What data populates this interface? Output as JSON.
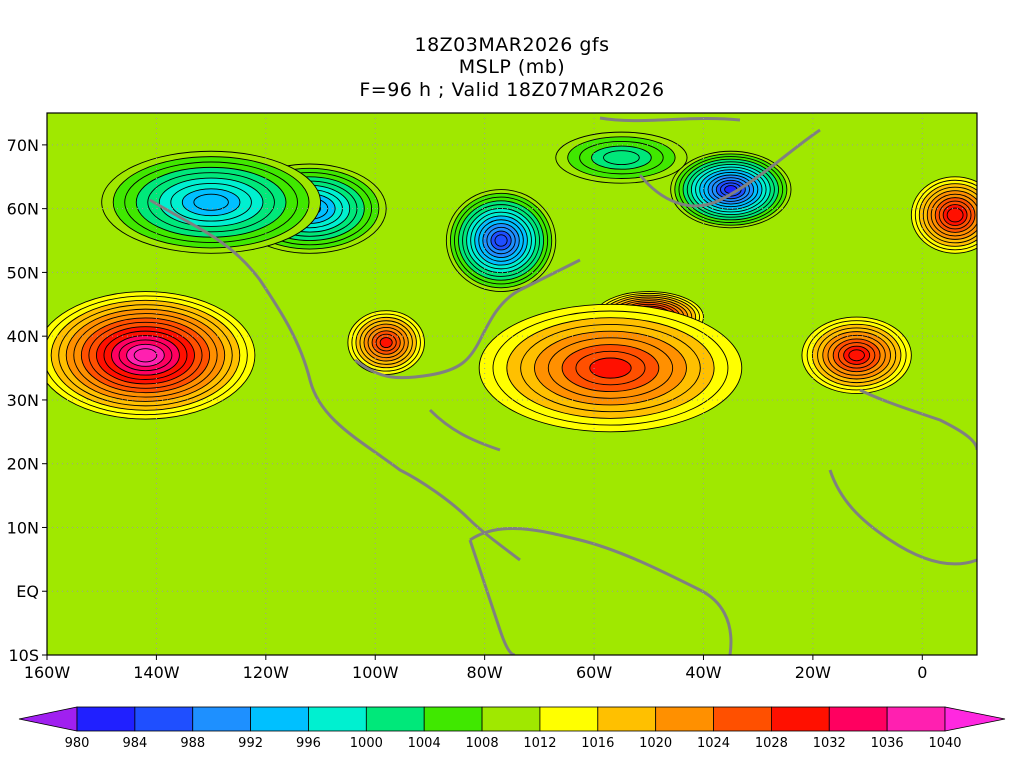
{
  "title": {
    "run": "18Z03MAR2026 gfs",
    "field": "MSLP (mb)",
    "valid": "F=96 h ; Valid 18Z07MAR2026"
  },
  "map": {
    "projection": "lat-lon",
    "lon_range": [
      -160,
      10
    ],
    "lat_range": [
      -10,
      75
    ],
    "lat_ticks": [
      {
        "value": 70,
        "label": "70N"
      },
      {
        "value": 60,
        "label": "60N"
      },
      {
        "value": 50,
        "label": "50N"
      },
      {
        "value": 40,
        "label": "40N"
      },
      {
        "value": 30,
        "label": "30N"
      },
      {
        "value": 20,
        "label": "20N"
      },
      {
        "value": 10,
        "label": "10N"
      },
      {
        "value": 0,
        "label": "EQ"
      },
      {
        "value": -10,
        "label": "10S"
      }
    ],
    "lon_ticks": [
      {
        "value": -160,
        "label": "160W"
      },
      {
        "value": -140,
        "label": "140W"
      },
      {
        "value": -120,
        "label": "120W"
      },
      {
        "value": -100,
        "label": "100W"
      },
      {
        "value": -80,
        "label": "80W"
      },
      {
        "value": -60,
        "label": "60W"
      },
      {
        "value": -40,
        "label": "40W"
      },
      {
        "value": -20,
        "label": "20W"
      },
      {
        "value": 0,
        "label": "0"
      }
    ],
    "grid": "dotted",
    "background_level": 1010,
    "pressure_centers": [
      {
        "type": "high",
        "lon": -142,
        "lat": 37,
        "value": 1038,
        "rx": 20,
        "ry": 10
      },
      {
        "type": "high",
        "lon": -50,
        "lat": 43,
        "value": 1037,
        "rx": 10,
        "ry": 4
      },
      {
        "type": "high",
        "lon": -57,
        "lat": 35,
        "value": 1028,
        "rx": 24,
        "ry": 10
      },
      {
        "type": "high",
        "lon": -12,
        "lat": 37,
        "value": 1030,
        "rx": 10,
        "ry": 6
      },
      {
        "type": "high",
        "lon": 6,
        "lat": 59,
        "value": 1031,
        "rx": 8,
        "ry": 6
      },
      {
        "type": "high",
        "lon": -98,
        "lat": 39,
        "value": 1028,
        "rx": 7,
        "ry": 5
      },
      {
        "type": "low",
        "lon": -35,
        "lat": 63,
        "value": 982,
        "rx": 11,
        "ry": 6
      },
      {
        "type": "low",
        "lon": -77,
        "lat": 55,
        "value": 984,
        "rx": 10,
        "ry": 8
      },
      {
        "type": "low",
        "lon": -112,
        "lat": 60,
        "value": 990,
        "rx": 14,
        "ry": 7
      },
      {
        "type": "low",
        "lon": -130,
        "lat": 61,
        "value": 992,
        "rx": 20,
        "ry": 8
      },
      {
        "type": "low",
        "lon": -55,
        "lat": 68,
        "value": 1000,
        "rx": 12,
        "ry": 4
      }
    ]
  },
  "colorbar": {
    "levels": [
      "980",
      "984",
      "988",
      "992",
      "996",
      "1000",
      "1004",
      "1008",
      "1012",
      "1016",
      "1020",
      "1024",
      "1028",
      "1032",
      "1036",
      "1040"
    ],
    "colors": [
      "#a020f0",
      "#2020ff",
      "#1f4fff",
      "#1e90ff",
      "#00c0ff",
      "#00f0d0",
      "#00e87a",
      "#40e800",
      "#a0e800",
      "#ffff00",
      "#ffc000",
      "#ff9000",
      "#ff5000",
      "#ff1000",
      "#ff0060",
      "#ff20b0",
      "#ff28e0"
    ]
  }
}
